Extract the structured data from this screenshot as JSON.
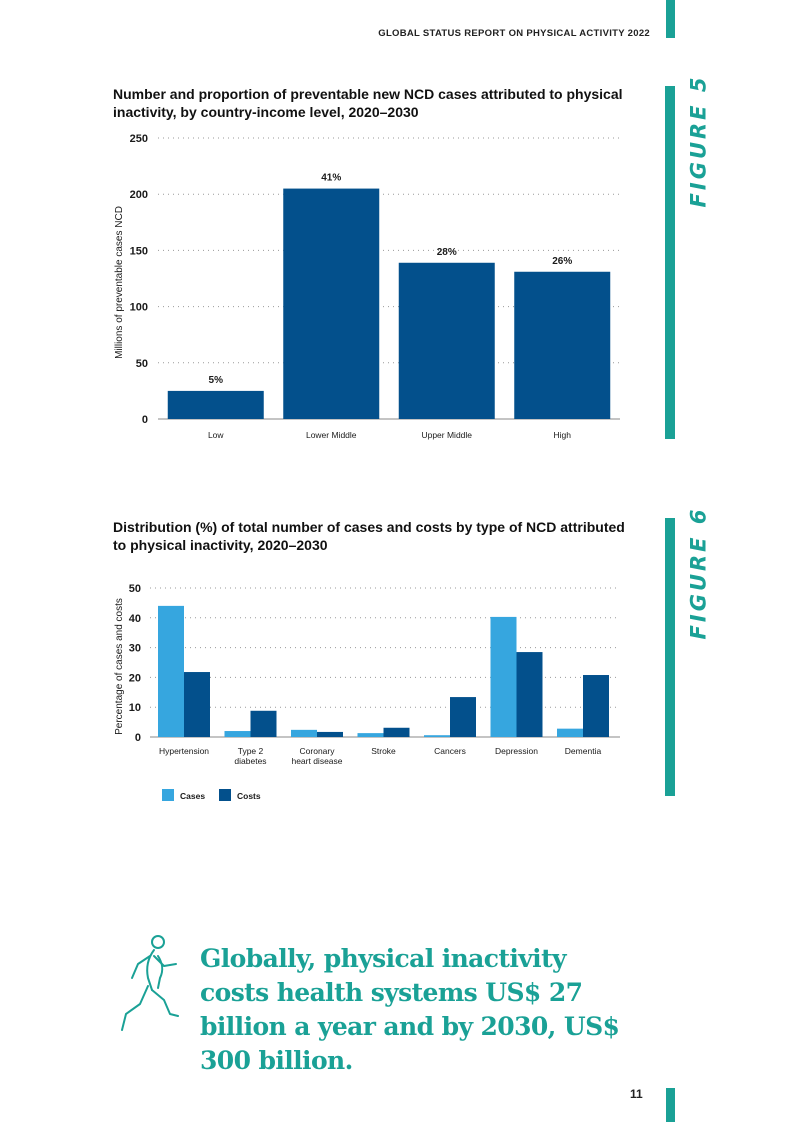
{
  "header": {
    "title": "GLOBAL STATUS REPORT ON PHYSICAL ACTIVITY 2022"
  },
  "colors": {
    "accent": "#1aa196",
    "dark_blue": "#03508c",
    "light_blue": "#36a6df",
    "grid": "#9a9a9a",
    "text": "#1a1a1a"
  },
  "figures": [
    {
      "label": "FIGURE 5"
    },
    {
      "label": "FIGURE 6"
    }
  ],
  "chart_data": [
    {
      "type": "bar",
      "title": "Number and proportion of preventable new NCD cases attributed to physical inactivity, by country-income level, 2020–2030",
      "categories": [
        "Low",
        "Lower Middle",
        "Upper Middle",
        "High"
      ],
      "values": [
        25,
        205,
        139,
        131
      ],
      "data_labels": [
        "5%",
        "41%",
        "28%",
        "26%"
      ],
      "xlabel": "",
      "ylabel": "Millions of preventable cases NCD",
      "ylim": [
        0,
        250
      ],
      "yticks": [
        0,
        50,
        100,
        150,
        200,
        250
      ],
      "grid": true
    },
    {
      "type": "bar",
      "title": "Distribution (%) of total number of cases and costs by type of NCD attributed to physical inactivity, 2020–2030",
      "categories": [
        [
          "Hypertension"
        ],
        [
          "Type 2",
          "diabetes"
        ],
        [
          "Coronary",
          "heart disease"
        ],
        [
          "Stroke"
        ],
        [
          "Cancers"
        ],
        [
          "Depression"
        ],
        [
          "Dementia"
        ]
      ],
      "series": [
        {
          "name": "Cases",
          "values": [
            44,
            2,
            2.4,
            1.3,
            0.6,
            40.3,
            2.8
          ]
        },
        {
          "name": "Costs",
          "values": [
            21.8,
            8.8,
            1.7,
            3.1,
            13.4,
            28.5,
            20.8
          ]
        }
      ],
      "xlabel": "",
      "ylabel": "Percentage of cases and costs",
      "ylim": [
        0,
        50
      ],
      "yticks": [
        0,
        10,
        20,
        30,
        40,
        50
      ],
      "legend_position": "bottom-left",
      "grid": true
    }
  ],
  "callout": {
    "text": "Globally, physical inactivity costs health systems US$ 27 billion a year and by 2030, US$ 300 billion."
  },
  "footer": {
    "page_number": "11"
  }
}
